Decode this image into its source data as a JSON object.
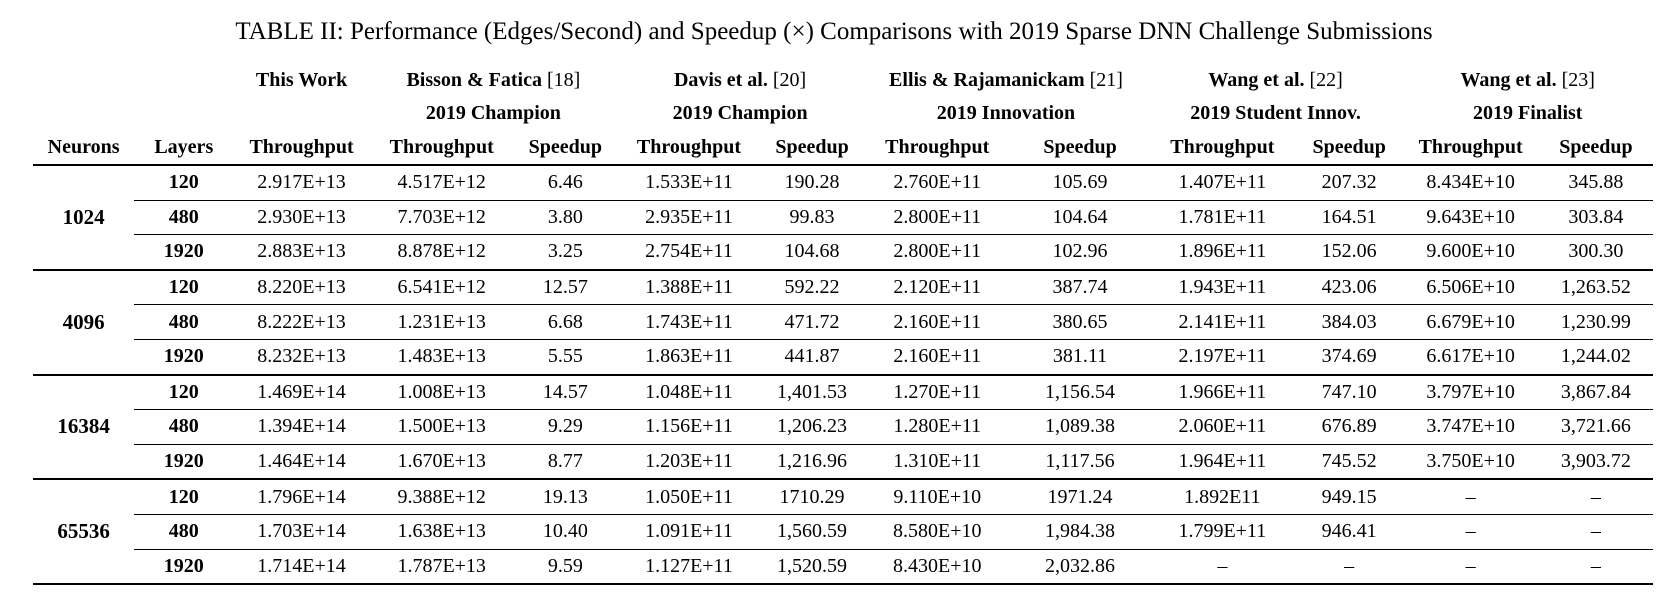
{
  "caption": "TABLE II: Performance (Edges/Second) and Speedup (×) Comparisons with 2019 Sparse DNN Challenge Submissions",
  "groups": [
    {
      "name": "This Work",
      "ref": "",
      "subtitle": ""
    },
    {
      "name": "Bisson & Fatica",
      "ref": "[18]",
      "subtitle": "2019 Champion"
    },
    {
      "name": "Davis et al.",
      "ref": "[20]",
      "subtitle": "2019 Champion"
    },
    {
      "name": "Ellis & Rajamanickam",
      "ref": "[21]",
      "subtitle": "2019 Innovation"
    },
    {
      "name": "Wang et al.",
      "ref": "[22]",
      "subtitle": "2019 Student Innov."
    },
    {
      "name": "Wang et al.",
      "ref": "[23]",
      "subtitle": "2019 Finalist"
    }
  ],
  "headers": {
    "neurons": "Neurons",
    "layers": "Layers",
    "throughput": "Throughput",
    "speedup": "Speedup"
  },
  "blocks": [
    {
      "neurons": "1024",
      "rows": [
        {
          "layers": "120",
          "cells": [
            "2.917E+13",
            "4.517E+12",
            "6.46",
            "1.533E+11",
            "190.28",
            "2.760E+11",
            "105.69",
            "1.407E+11",
            "207.32",
            "8.434E+10",
            "345.88"
          ]
        },
        {
          "layers": "480",
          "cells": [
            "2.930E+13",
            "7.703E+12",
            "3.80",
            "2.935E+11",
            "99.83",
            "2.800E+11",
            "104.64",
            "1.781E+11",
            "164.51",
            "9.643E+10",
            "303.84"
          ]
        },
        {
          "layers": "1920",
          "cells": [
            "2.883E+13",
            "8.878E+12",
            "3.25",
            "2.754E+11",
            "104.68",
            "2.800E+11",
            "102.96",
            "1.896E+11",
            "152.06",
            "9.600E+10",
            "300.30"
          ]
        }
      ]
    },
    {
      "neurons": "4096",
      "rows": [
        {
          "layers": "120",
          "cells": [
            "8.220E+13",
            "6.541E+12",
            "12.57",
            "1.388E+11",
            "592.22",
            "2.120E+11",
            "387.74",
            "1.943E+11",
            "423.06",
            "6.506E+10",
            "1,263.52"
          ]
        },
        {
          "layers": "480",
          "cells": [
            "8.222E+13",
            "1.231E+13",
            "6.68",
            "1.743E+11",
            "471.72",
            "2.160E+11",
            "380.65",
            "2.141E+11",
            "384.03",
            "6.679E+10",
            "1,230.99"
          ]
        },
        {
          "layers": "1920",
          "cells": [
            "8.232E+13",
            "1.483E+13",
            "5.55",
            "1.863E+11",
            "441.87",
            "2.160E+11",
            "381.11",
            "2.197E+11",
            "374.69",
            "6.617E+10",
            "1,244.02"
          ]
        }
      ]
    },
    {
      "neurons": "16384",
      "rows": [
        {
          "layers": "120",
          "cells": [
            "1.469E+14",
            "1.008E+13",
            "14.57",
            "1.048E+11",
            "1,401.53",
            "1.270E+11",
            "1,156.54",
            "1.966E+11",
            "747.10",
            "3.797E+10",
            "3,867.84"
          ]
        },
        {
          "layers": "480",
          "cells": [
            "1.394E+14",
            "1.500E+13",
            "9.29",
            "1.156E+11",
            "1,206.23",
            "1.280E+11",
            "1,089.38",
            "2.060E+11",
            "676.89",
            "3.747E+10",
            "3,721.66"
          ]
        },
        {
          "layers": "1920",
          "cells": [
            "1.464E+14",
            "1.670E+13",
            "8.77",
            "1.203E+11",
            "1,216.96",
            "1.310E+11",
            "1,117.56",
            "1.964E+11",
            "745.52",
            "3.750E+10",
            "3,903.72"
          ]
        }
      ]
    },
    {
      "neurons": "65536",
      "rows": [
        {
          "layers": "120",
          "cells": [
            "1.796E+14",
            "9.388E+12",
            "19.13",
            "1.050E+11",
            "1710.29",
            "9.110E+10",
            "1971.24",
            "1.892E11",
            "949.15",
            "–",
            "–"
          ]
        },
        {
          "layers": "480",
          "cells": [
            "1.703E+14",
            "1.638E+13",
            "10.40",
            "1.091E+11",
            "1,560.59",
            "8.580E+10",
            "1,984.38",
            "1.799E+11",
            "946.41",
            "–",
            "–"
          ]
        },
        {
          "layers": "1920",
          "cells": [
            "1.714E+14",
            "1.787E+13",
            "9.59",
            "1.127E+11",
            "1,520.59",
            "8.430E+10",
            "2,032.86",
            "–",
            "–",
            "–",
            "–"
          ]
        }
      ]
    }
  ]
}
